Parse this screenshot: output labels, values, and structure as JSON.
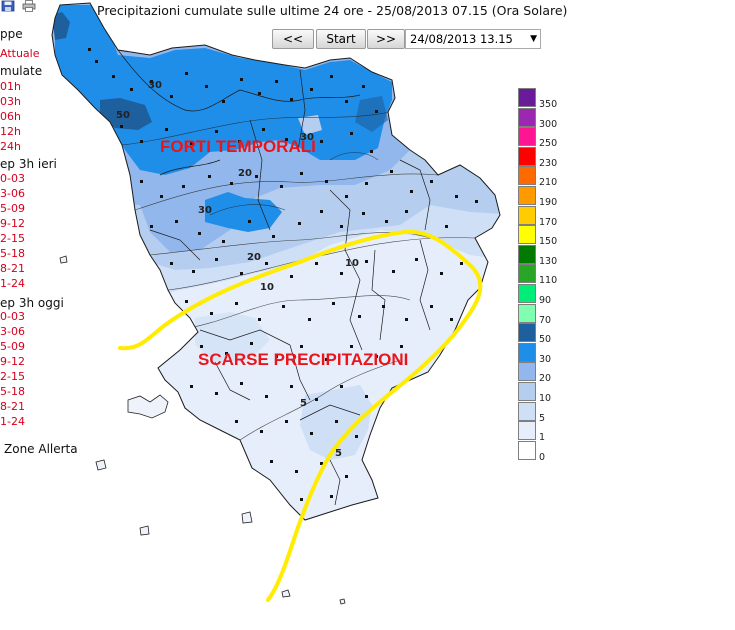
{
  "title": "Precipitazioni cumulate sulle ultime 24 ore - 25/08/2013 07.15 (Ora Solare)",
  "toolbar": {
    "prev_label": "<<",
    "start_label": "Start",
    "next_label": ">>",
    "date_value": "24/08/2013 13.15"
  },
  "sidebar": {
    "mappe_label": "ppe",
    "attuale_label": "Attuale",
    "cumulate_label": "mulate",
    "cumulate_items": [
      "01h",
      "03h",
      "06h",
      "12h",
      "24h"
    ],
    "ieri_label": "ep 3h ieri",
    "ieri_items": [
      "0-03",
      "3-06",
      "5-09",
      "9-12",
      "2-15",
      "5-18",
      "8-21",
      "1-24"
    ],
    "oggi_label": "ep 3h oggi",
    "oggi_items": [
      "0-03",
      "3-06",
      "5-09",
      "9-12",
      "2-15",
      "5-18",
      "8-21",
      "1-24"
    ],
    "zone_label": "Zone Allerta"
  },
  "legend": {
    "labels": [
      "350",
      "300",
      "250",
      "230",
      "210",
      "190",
      "170",
      "150",
      "130",
      "110",
      "90",
      "70",
      "50",
      "30",
      "20",
      "10",
      "5",
      "1",
      "0"
    ],
    "colors": [
      "#6a1b9a",
      "#9c27b0",
      "#ff1493",
      "#ff0000",
      "#ff6a00",
      "#ff9900",
      "#ffcc00",
      "#ffff00",
      "#007a00",
      "#27a627",
      "#00ee77",
      "#80ffb0",
      "#1e5f9e",
      "#1f8ee8",
      "#92b7ec",
      "#b5ceef",
      "#cfdff6",
      "#e6eefb",
      "#ffffff"
    ]
  },
  "annotations": {
    "north": "FORTI TEMPORALI",
    "south": "SCARSE PRECIPITAZIONI"
  },
  "contour_labels": [
    "30",
    "30",
    "50",
    "30",
    "20",
    "20",
    "10",
    "10",
    "5",
    "5"
  ],
  "colors": {
    "annotation_red": "#e8161c",
    "divider_yellow": "#ffec00",
    "boundary": "#1a1a1a"
  }
}
